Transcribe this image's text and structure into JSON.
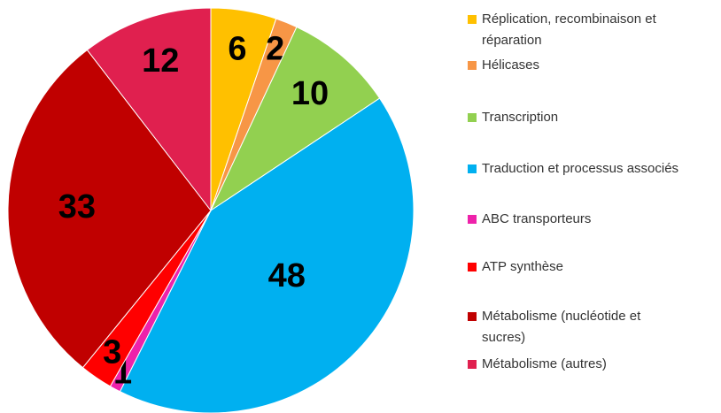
{
  "chart_data": {
    "type": "pie",
    "categories": [
      "Réplication, recombinaison et réparation",
      "Hélicases",
      "Transcription",
      "Traduction et processus associés",
      "ABC transporteurs",
      "ATP synthèse",
      "Métabolisme (nucléotide et sucres)",
      "Métabolisme (autres)"
    ],
    "values": [
      6,
      2,
      10,
      48,
      1,
      3,
      33,
      12
    ],
    "colors": [
      "#FFC000",
      "#F79646",
      "#92D050",
      "#00B0F0",
      "#EE22AA",
      "#FF0000",
      "#C00000",
      "#E0204F"
    ],
    "legend": "right"
  }
}
